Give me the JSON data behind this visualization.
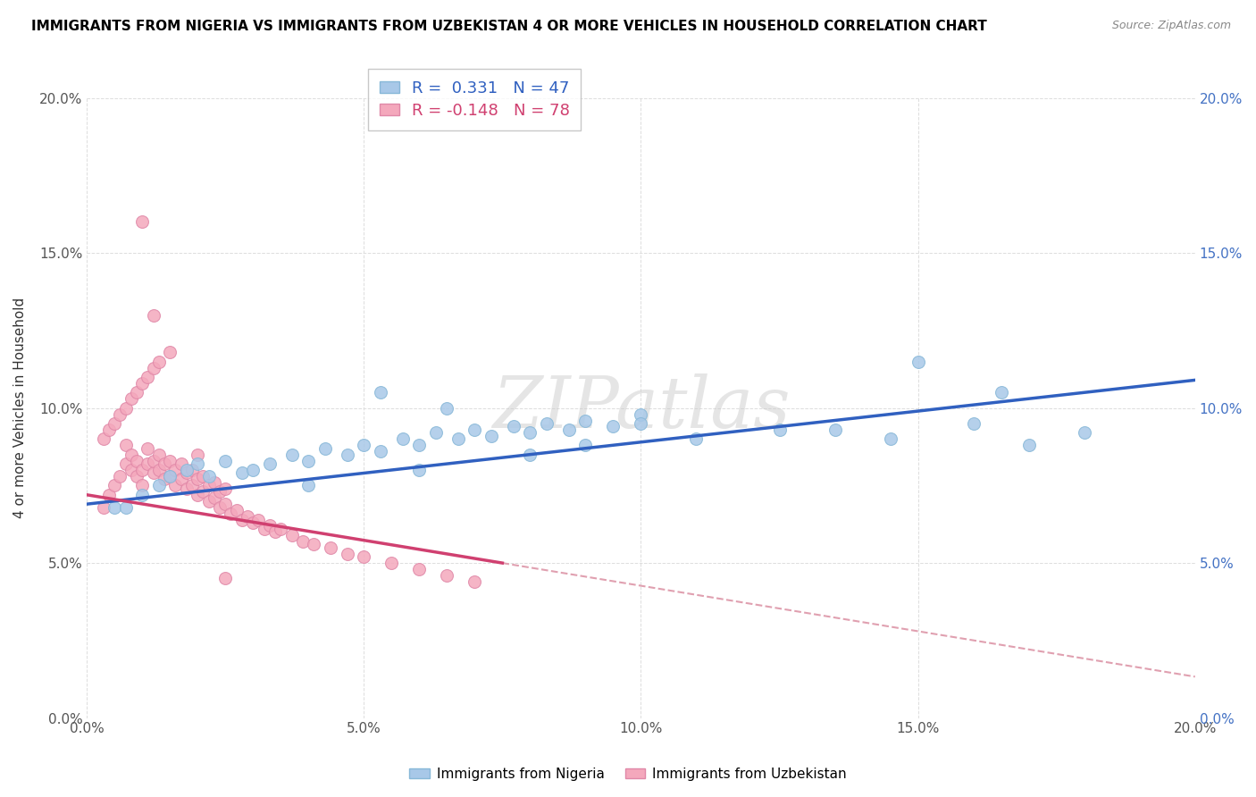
{
  "title": "IMMIGRANTS FROM NIGERIA VS IMMIGRANTS FROM UZBEKISTAN 4 OR MORE VEHICLES IN HOUSEHOLD CORRELATION CHART",
  "source": "Source: ZipAtlas.com",
  "ylabel": "4 or more Vehicles in Household",
  "xlim": [
    0.0,
    0.2
  ],
  "ylim": [
    0.0,
    0.2
  ],
  "xticks": [
    0.0,
    0.05,
    0.1,
    0.15,
    0.2
  ],
  "yticks": [
    0.0,
    0.05,
    0.1,
    0.15,
    0.2
  ],
  "xtick_labels": [
    "0.0%",
    "5.0%",
    "10.0%",
    "15.0%",
    "20.0%"
  ],
  "ytick_labels": [
    "0.0%",
    "5.0%",
    "10.0%",
    "15.0%",
    "20.0%"
  ],
  "nigeria_R": 0.331,
  "nigeria_N": 47,
  "uzbekistan_R": -0.148,
  "uzbekistan_N": 78,
  "nigeria_color": "#A8C8E8",
  "uzbekistan_color": "#F4A8BC",
  "nigeria_line_color": "#3060C0",
  "uzbekistan_line_color": "#D04070",
  "ref_line_color": "#E0A0B0",
  "watermark": "ZIPatlas",
  "background_color": "#FFFFFF",
  "nigeria_line_x0": 0.0,
  "nigeria_line_y0": 0.069,
  "nigeria_line_x1": 0.2,
  "nigeria_line_y1": 0.109,
  "uzbekistan_line_x0": 0.0,
  "uzbekistan_line_y0": 0.072,
  "uzbekistan_line_x1": 0.075,
  "uzbekistan_line_y1": 0.05,
  "ref_line_x0": 0.0,
  "ref_line_y0": 0.072,
  "ref_line_x1": 0.2,
  "ref_line_y1": 0.0,
  "nigeria_scatter_x": [
    0.005,
    0.01,
    0.013,
    0.015,
    0.018,
    0.02,
    0.022,
    0.025,
    0.028,
    0.03,
    0.033,
    0.037,
    0.04,
    0.043,
    0.047,
    0.05,
    0.053,
    0.057,
    0.06,
    0.063,
    0.067,
    0.07,
    0.073,
    0.077,
    0.08,
    0.083,
    0.087,
    0.09,
    0.095,
    0.1,
    0.053,
    0.065,
    0.08,
    0.09,
    0.1,
    0.11,
    0.125,
    0.135,
    0.145,
    0.16,
    0.17,
    0.18,
    0.15,
    0.165,
    0.007,
    0.04,
    0.06
  ],
  "nigeria_scatter_y": [
    0.068,
    0.072,
    0.075,
    0.078,
    0.08,
    0.082,
    0.078,
    0.083,
    0.079,
    0.08,
    0.082,
    0.085,
    0.083,
    0.087,
    0.085,
    0.088,
    0.086,
    0.09,
    0.088,
    0.092,
    0.09,
    0.093,
    0.091,
    0.094,
    0.092,
    0.095,
    0.093,
    0.096,
    0.094,
    0.098,
    0.105,
    0.1,
    0.085,
    0.088,
    0.095,
    0.09,
    0.093,
    0.093,
    0.09,
    0.095,
    0.088,
    0.092,
    0.115,
    0.105,
    0.068,
    0.075,
    0.08
  ],
  "uzbekistan_scatter_x": [
    0.003,
    0.004,
    0.005,
    0.006,
    0.007,
    0.007,
    0.008,
    0.008,
    0.009,
    0.009,
    0.01,
    0.01,
    0.011,
    0.011,
    0.012,
    0.012,
    0.013,
    0.013,
    0.014,
    0.014,
    0.015,
    0.015,
    0.016,
    0.016,
    0.017,
    0.017,
    0.018,
    0.018,
    0.019,
    0.019,
    0.02,
    0.02,
    0.021,
    0.021,
    0.022,
    0.022,
    0.023,
    0.023,
    0.024,
    0.024,
    0.025,
    0.025,
    0.026,
    0.027,
    0.028,
    0.029,
    0.03,
    0.031,
    0.032,
    0.033,
    0.034,
    0.035,
    0.037,
    0.039,
    0.041,
    0.044,
    0.047,
    0.05,
    0.055,
    0.06,
    0.065,
    0.07,
    0.003,
    0.004,
    0.005,
    0.006,
    0.007,
    0.008,
    0.009,
    0.01,
    0.011,
    0.012,
    0.013,
    0.015,
    0.01,
    0.012,
    0.02,
    0.025
  ],
  "uzbekistan_scatter_y": [
    0.068,
    0.072,
    0.075,
    0.078,
    0.082,
    0.088,
    0.08,
    0.085,
    0.078,
    0.083,
    0.075,
    0.08,
    0.082,
    0.087,
    0.079,
    0.083,
    0.08,
    0.085,
    0.077,
    0.082,
    0.078,
    0.083,
    0.075,
    0.08,
    0.077,
    0.082,
    0.074,
    0.079,
    0.075,
    0.08,
    0.072,
    0.077,
    0.073,
    0.078,
    0.07,
    0.075,
    0.071,
    0.076,
    0.068,
    0.073,
    0.069,
    0.074,
    0.066,
    0.067,
    0.064,
    0.065,
    0.063,
    0.064,
    0.061,
    0.062,
    0.06,
    0.061,
    0.059,
    0.057,
    0.056,
    0.055,
    0.053,
    0.052,
    0.05,
    0.048,
    0.046,
    0.044,
    0.09,
    0.093,
    0.095,
    0.098,
    0.1,
    0.103,
    0.105,
    0.108,
    0.11,
    0.113,
    0.115,
    0.118,
    0.16,
    0.13,
    0.085,
    0.045
  ]
}
